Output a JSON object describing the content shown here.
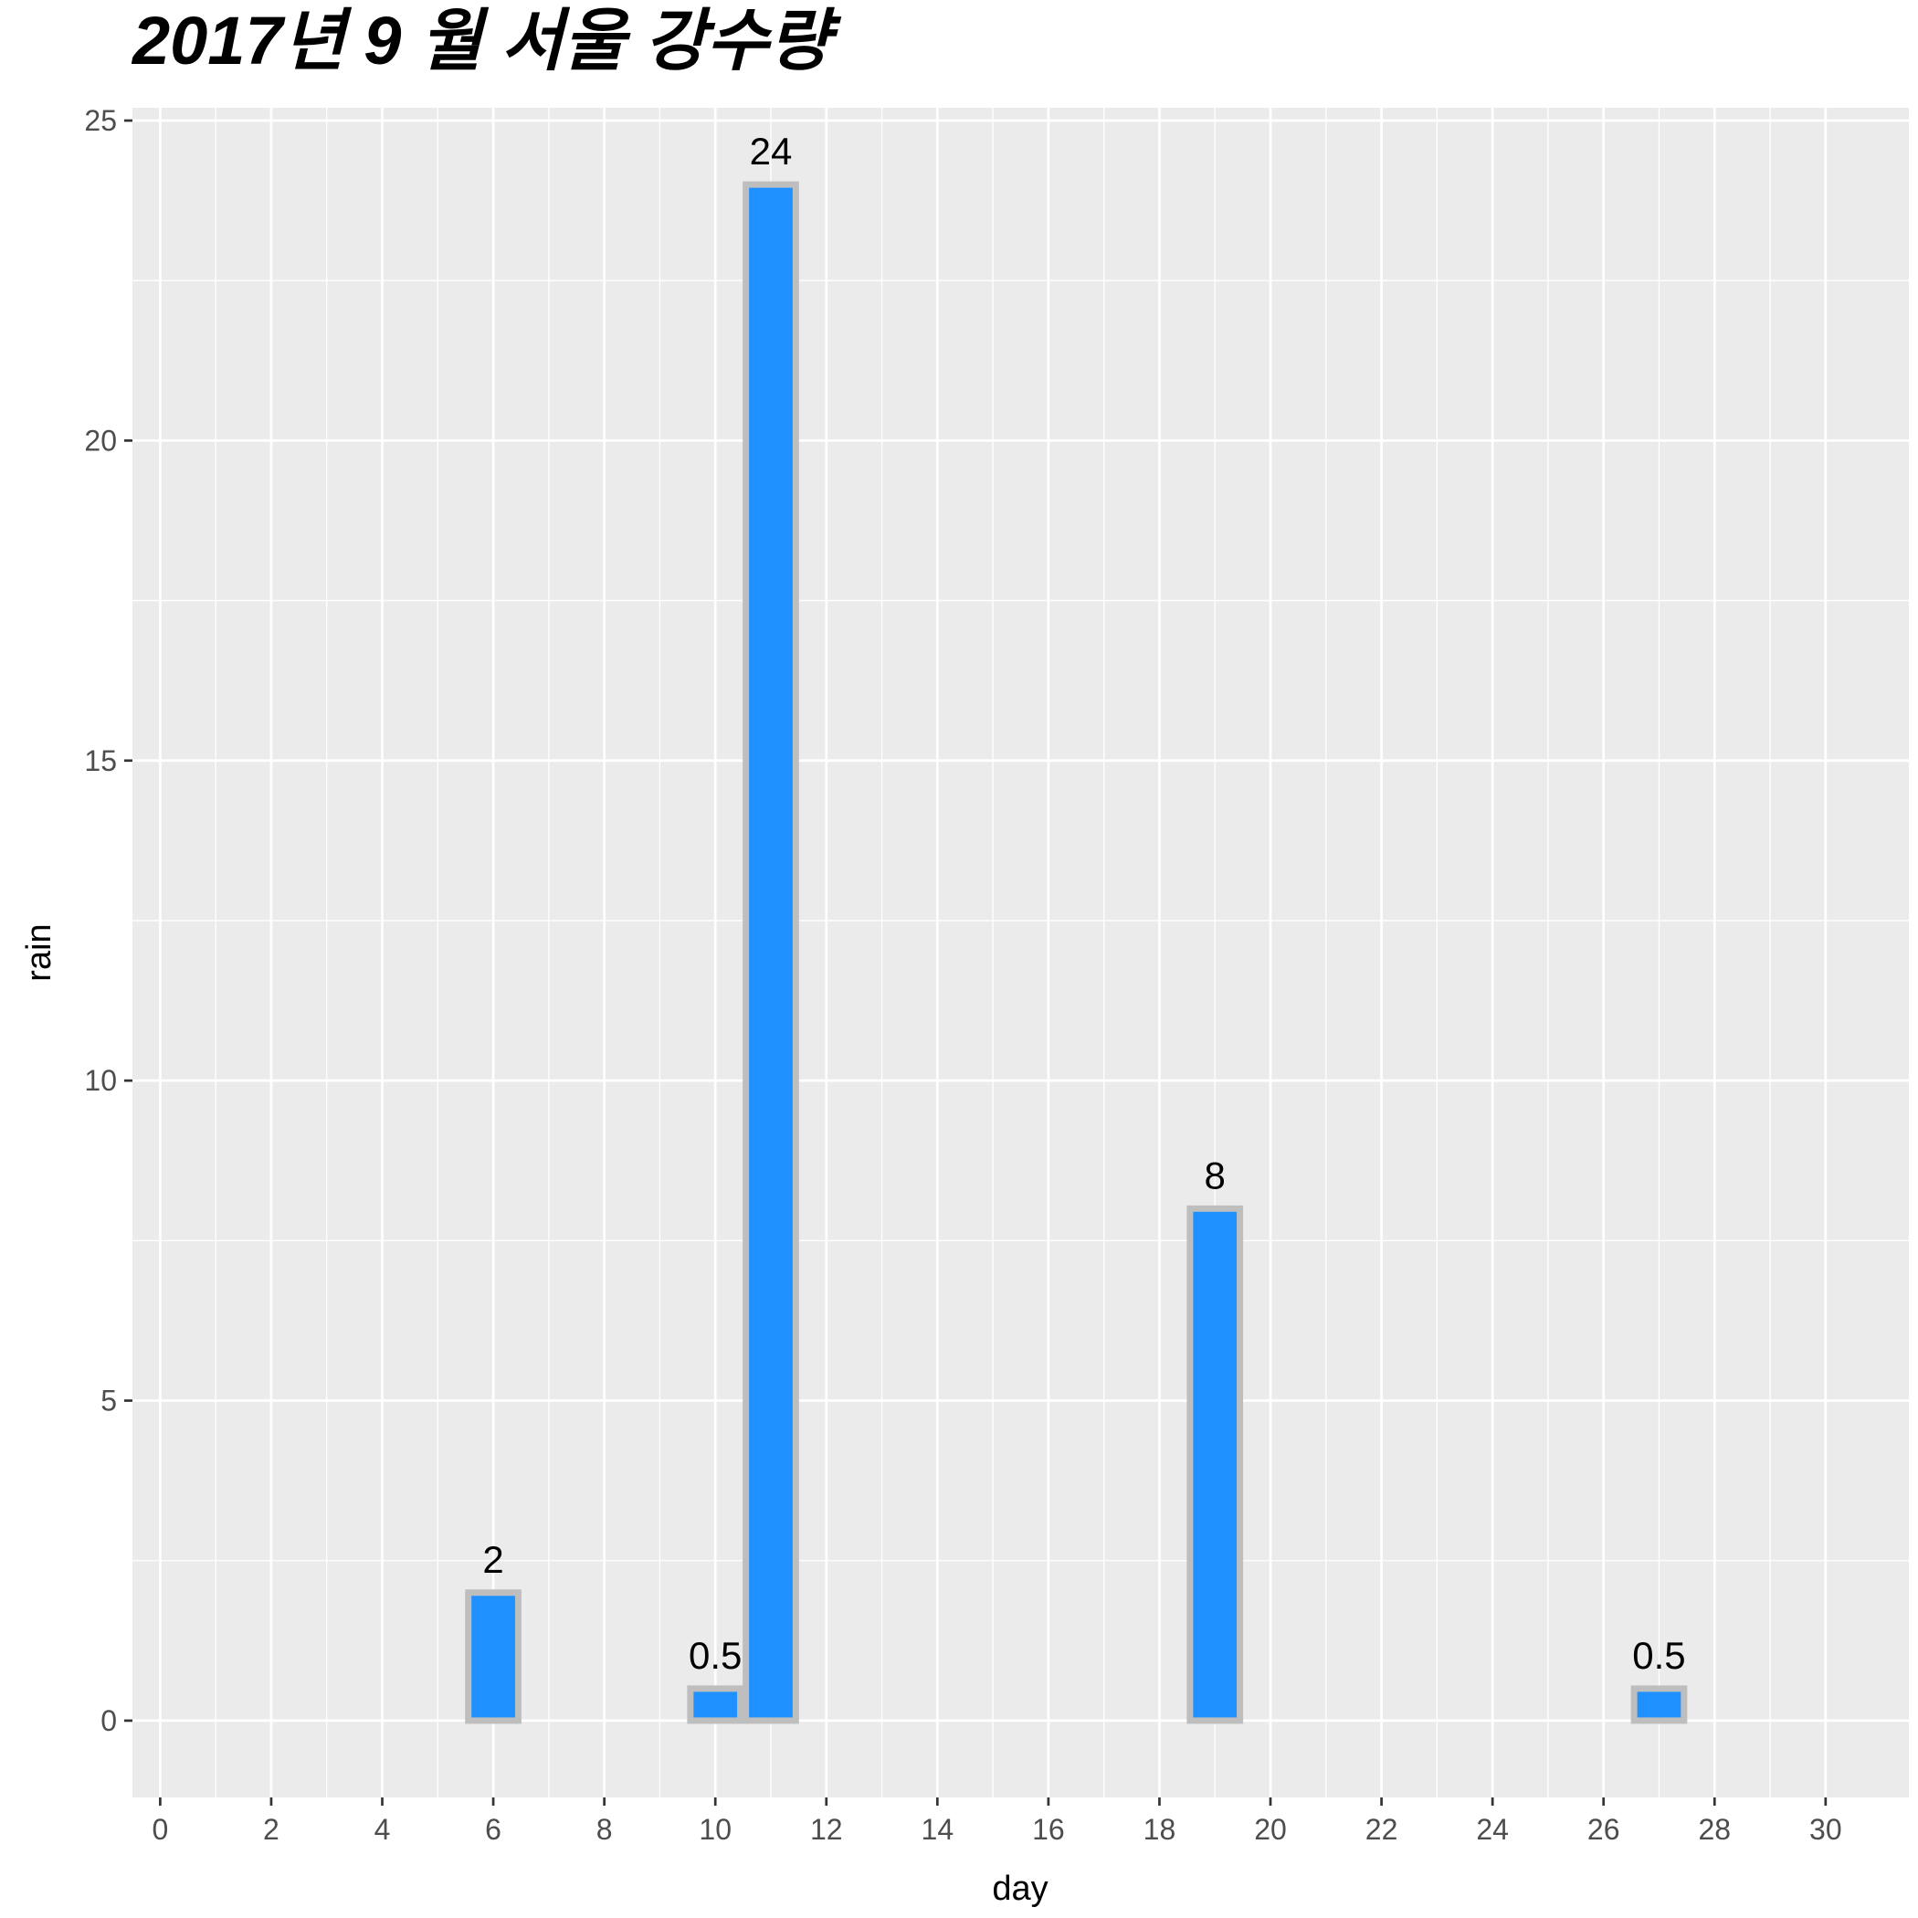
{
  "chart_data": {
    "type": "bar",
    "title": "2017년 9 월 서울 강수량",
    "xlabel": "day",
    "ylabel": "rain",
    "x": [
      6,
      10,
      11,
      19,
      27
    ],
    "values": [
      2,
      0.5,
      24,
      8,
      0.5
    ],
    "labels": [
      "2",
      "0.5",
      "24",
      "8",
      "0.5"
    ],
    "xlim": [
      -0.5,
      31.5
    ],
    "ylim": [
      -1.2,
      25.2
    ],
    "x_ticks": [
      0,
      2,
      4,
      6,
      8,
      10,
      12,
      14,
      16,
      18,
      20,
      22,
      24,
      26,
      28,
      30
    ],
    "x_tick_labels": [
      "0",
      "2",
      "4",
      "6",
      "8",
      "10",
      "12",
      "14",
      "16",
      "18",
      "20",
      "22",
      "24",
      "26",
      "28",
      "30"
    ],
    "y_ticks": [
      0,
      5,
      10,
      15,
      20,
      25
    ],
    "y_tick_labels": [
      "0",
      "5",
      "10",
      "15",
      "20",
      "25"
    ],
    "grid": true,
    "colors": {
      "bar_fill": "#1e90ff",
      "bar_outline": "#bebebe",
      "panel": "#ebebeb",
      "grid": "#ffffff"
    }
  }
}
